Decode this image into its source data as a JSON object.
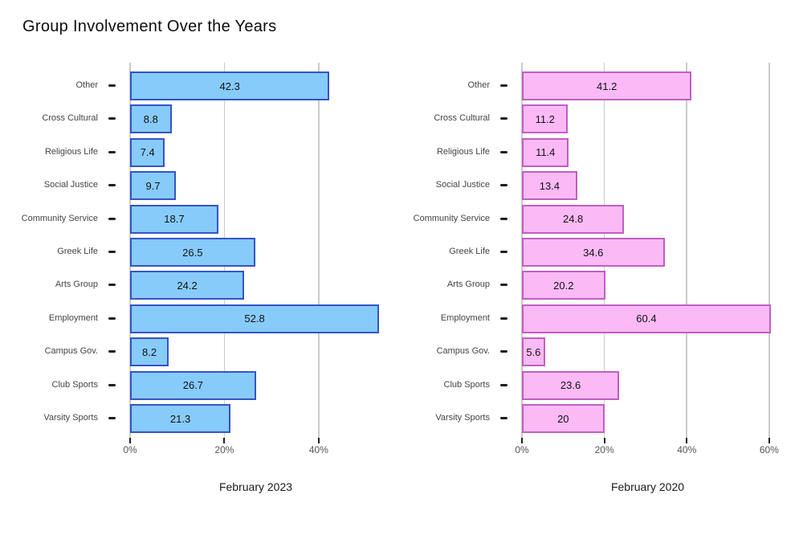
{
  "page": {
    "title": "Group Involvement Over the Years",
    "background": "#FFFFFF"
  },
  "style": {
    "grid_color": "#CBCBCB",
    "axis_tick_color": "#1F1F1F",
    "category_label_color": "#444444",
    "tick_label_color": "#555555",
    "value_label_color": "#111111"
  },
  "chart_data": [
    {
      "type": "bar",
      "orientation": "horizontal",
      "subtitle": "February 2023",
      "categories": [
        "Other",
        "Cross Cultural",
        "Religious Life",
        "Social Justice",
        "Community Service",
        "Greek Life",
        "Arts Group",
        "Employment",
        "Campus Gov.",
        "Club Sports",
        "Varsity Sports"
      ],
      "values": [
        42.3,
        8.8,
        7.4,
        9.7,
        18.7,
        26.5,
        24.2,
        52.8,
        8.2,
        26.7,
        21.3
      ],
      "value_labels": [
        "42.3",
        "8.8",
        "7.4",
        "9.7",
        "18.7",
        "26.5",
        "24.2",
        "52.8",
        "8.2",
        "26.7",
        "21.3"
      ],
      "xtick_labels": [
        "0%",
        "20%",
        "40%"
      ],
      "xtick_values": [
        0,
        20,
        40
      ],
      "xlim": [
        0,
        53.3
      ],
      "grid": true,
      "legend": "none",
      "bar_fill": "#87CBFA",
      "bar_border": "#3454C6"
    },
    {
      "type": "bar",
      "orientation": "horizontal",
      "subtitle": "February 2020",
      "categories": [
        "Other",
        "Cross Cultural",
        "Religious Life",
        "Social Justice",
        "Community Service",
        "Greek Life",
        "Arts Group",
        "Employment",
        "Campus Gov.",
        "Club Sports",
        "Varsity Sports"
      ],
      "values": [
        41.2,
        11.2,
        11.4,
        13.4,
        24.8,
        34.6,
        20.2,
        60.4,
        5.6,
        23.6,
        20
      ],
      "value_labels": [
        "41.2",
        "11.2",
        "11.4",
        "13.4",
        "24.8",
        "34.6",
        "20.2",
        "60.4",
        "5.6",
        "23.6",
        "20"
      ],
      "xtick_labels": [
        "0%",
        "20%",
        "40%",
        "60%"
      ],
      "xtick_values": [
        0,
        20,
        40,
        60
      ],
      "xlim": [
        0,
        61
      ],
      "grid": true,
      "legend": "none",
      "bar_fill": "#FBBAF6",
      "bar_border": "#C05FC2"
    }
  ]
}
